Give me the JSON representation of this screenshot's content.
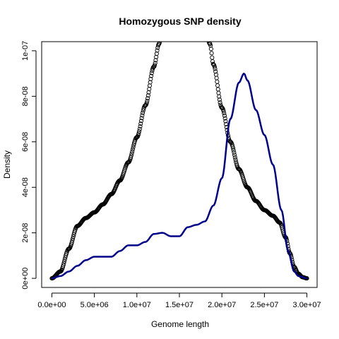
{
  "chart_data": {
    "type": "line",
    "title": "Homozygous SNP density",
    "xlabel": "Genome length",
    "ylabel": "Density",
    "xlim": [
      -1200000,
      31200000
    ],
    "ylim": [
      -4e-09,
      1.04e-07
    ],
    "x_ticks": [
      0,
      5000000,
      10000000,
      15000000,
      20000000,
      25000000,
      30000000
    ],
    "x_tick_labels": [
      "0.0e+00",
      "5.0e+06",
      "1.0e+07",
      "1.5e+07",
      "2.0e+07",
      "2.5e+07",
      "3.0e+07"
    ],
    "y_ticks": [
      0,
      2e-08,
      4e-08,
      6e-08,
      8e-08,
      1e-07
    ],
    "y_tick_labels": [
      "0e+00",
      "2e-08",
      "4e-08",
      "6e-08",
      "8e-08",
      "1e-07"
    ],
    "grid": false,
    "legend": "none",
    "series": [
      {
        "style": "circles",
        "color": "#000000",
        "x": [
          0,
          1000000,
          2000000,
          3000000,
          4000000,
          5000000,
          6000000,
          7000000,
          8000000,
          9000000,
          10000000,
          11000000,
          12000000,
          12600000,
          13000000,
          18000000,
          18600000,
          19000000,
          20000000,
          21000000,
          22000000,
          23000000,
          24000000,
          25000000,
          26000000,
          26800000,
          27500000,
          28000000,
          28500000,
          29000000,
          29500000,
          30000000
        ],
        "y": [
          0,
          3e-09,
          1.3e-08,
          2.3e-08,
          2.65e-08,
          2.9e-08,
          3.25e-08,
          3.7e-08,
          4.3e-08,
          5.1e-08,
          6.2e-08,
          7.6e-08,
          9.3e-08,
          1.03e-07,
          1.1e-07,
          1.1e-07,
          1.03e-07,
          9.4e-08,
          7.5e-08,
          6e-08,
          4.8e-08,
          4e-08,
          3.4e-08,
          3e-08,
          2.75e-08,
          2.45e-08,
          1.8e-08,
          1.1e-08,
          5e-09,
          2e-09,
          5e-10,
          0
        ]
      },
      {
        "style": "line",
        "color": "#00008B",
        "x": [
          0,
          1000000,
          2000000,
          3000000,
          4000000,
          5000000,
          6000000,
          7000000,
          8000000,
          9000000,
          10000000,
          11000000,
          12000000,
          13000000,
          14000000,
          15000000,
          16000000,
          17000000,
          18000000,
          19000000,
          20000000,
          21000000,
          22000000,
          22600000,
          23000000,
          24000000,
          25000000,
          26000000,
          27000000,
          27800000,
          28500000,
          29000000,
          30000000
        ],
        "y": [
          0,
          1e-09,
          3e-09,
          5.5e-09,
          8e-09,
          9.5e-09,
          9.5e-09,
          9.5e-09,
          1.2e-08,
          1.45e-08,
          1.45e-08,
          1.6e-08,
          1.95e-08,
          2e-08,
          1.85e-08,
          1.85e-08,
          2.25e-08,
          2.35e-08,
          2.5e-08,
          3.2e-08,
          4.4e-08,
          7e-08,
          8.6e-08,
          9e-08,
          8.7e-08,
          7.4e-08,
          6.3e-08,
          5e-08,
          3e-08,
          1.2e-08,
          3e-09,
          1e-09,
          0
        ]
      }
    ]
  }
}
